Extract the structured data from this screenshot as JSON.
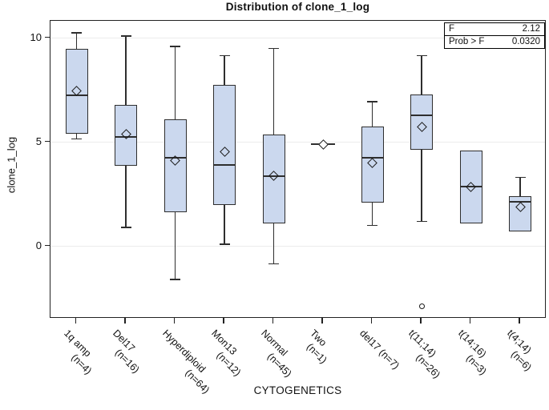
{
  "title": "Distribution of clone_1_log",
  "stats_box": {
    "rows": [
      {
        "label": "F",
        "value": "2.12"
      },
      {
        "label": "Prob > F",
        "value": "0.0320"
      }
    ]
  },
  "colors": {
    "box_fill": "#cbd8ee",
    "box_border": "#2e2e2e",
    "gridline": "#ececec",
    "frame": "#222222"
  },
  "chart_data": {
    "type": "box",
    "title": "Distribution of clone_1_log",
    "xlabel": "CYTOGENETICS",
    "ylabel": "clone_1_log",
    "y_ticks": [
      0,
      5,
      10
    ],
    "ylim": [
      -3.5,
      10.85
    ],
    "grid": "horizontal-at-ticks",
    "legend": "none",
    "marker_meaning": "diamond = mean, circle = outlier",
    "groups": [
      {
        "label": "1q amp",
        "n_label": "(n=4)",
        "n": 4,
        "whisker_low": 5.15,
        "q1": 5.4,
        "median": 7.25,
        "q3": 9.5,
        "whisker_high": 10.25,
        "mean": 7.45,
        "outliers": []
      },
      {
        "label": "Del17",
        "n_label": "(n=16)",
        "n": 16,
        "whisker_low": 0.9,
        "q1": 3.85,
        "median": 5.25,
        "q3": 6.8,
        "whisker_high": 10.1,
        "mean": 5.4,
        "outliers": []
      },
      {
        "label": "Hyperdiploid",
        "n_label": "(n=64)",
        "n": 64,
        "whisker_low": -1.6,
        "q1": 1.65,
        "median": 4.25,
        "q3": 6.1,
        "whisker_high": 9.6,
        "mean": 4.1,
        "outliers": []
      },
      {
        "label": "Mon13",
        "n_label": "(n=12)",
        "n": 12,
        "whisker_low": 0.1,
        "q1": 2.0,
        "median": 3.9,
        "q3": 7.75,
        "whisker_high": 9.15,
        "mean": 4.55,
        "outliers": []
      },
      {
        "label": "Normal",
        "n_label": "(n=45)",
        "n": 45,
        "whisker_low": -0.85,
        "q1": 1.1,
        "median": 3.35,
        "q3": 5.35,
        "whisker_high": 9.5,
        "mean": 3.4,
        "outliers": []
      },
      {
        "label": "Two",
        "n_label": "(n=1)",
        "n": 1,
        "value": 4.9,
        "mean": 4.9,
        "outliers": []
      },
      {
        "label": "del17",
        "n_label": "(n=7)",
        "n": 7,
        "single_line": true,
        "whisker_low": 1.0,
        "q1": 2.1,
        "median": 4.25,
        "q3": 5.75,
        "whisker_high": 6.95,
        "mean": 4.0,
        "outliers": []
      },
      {
        "label": "t(11;14)",
        "n_label": "(n=26)",
        "n": 26,
        "whisker_low": 1.2,
        "q1": 4.65,
        "median": 6.3,
        "q3": 7.3,
        "whisker_high": 9.15,
        "mean": 5.75,
        "outliers": [
          -2.9
        ]
      },
      {
        "label": "t(14;16)",
        "n_label": "(n=3)",
        "n": 3,
        "whisker_low": null,
        "q1": 1.1,
        "median": 2.85,
        "q3": 4.6,
        "whisker_high": null,
        "mean": 2.85,
        "outliers": []
      },
      {
        "label": "t(4;14)",
        "n_label": "(n=6)",
        "n": 6,
        "whisker_low": null,
        "q1": 0.7,
        "median": 2.15,
        "q3": 2.4,
        "whisker_high": 3.3,
        "mean": 1.9,
        "outliers": []
      }
    ]
  }
}
